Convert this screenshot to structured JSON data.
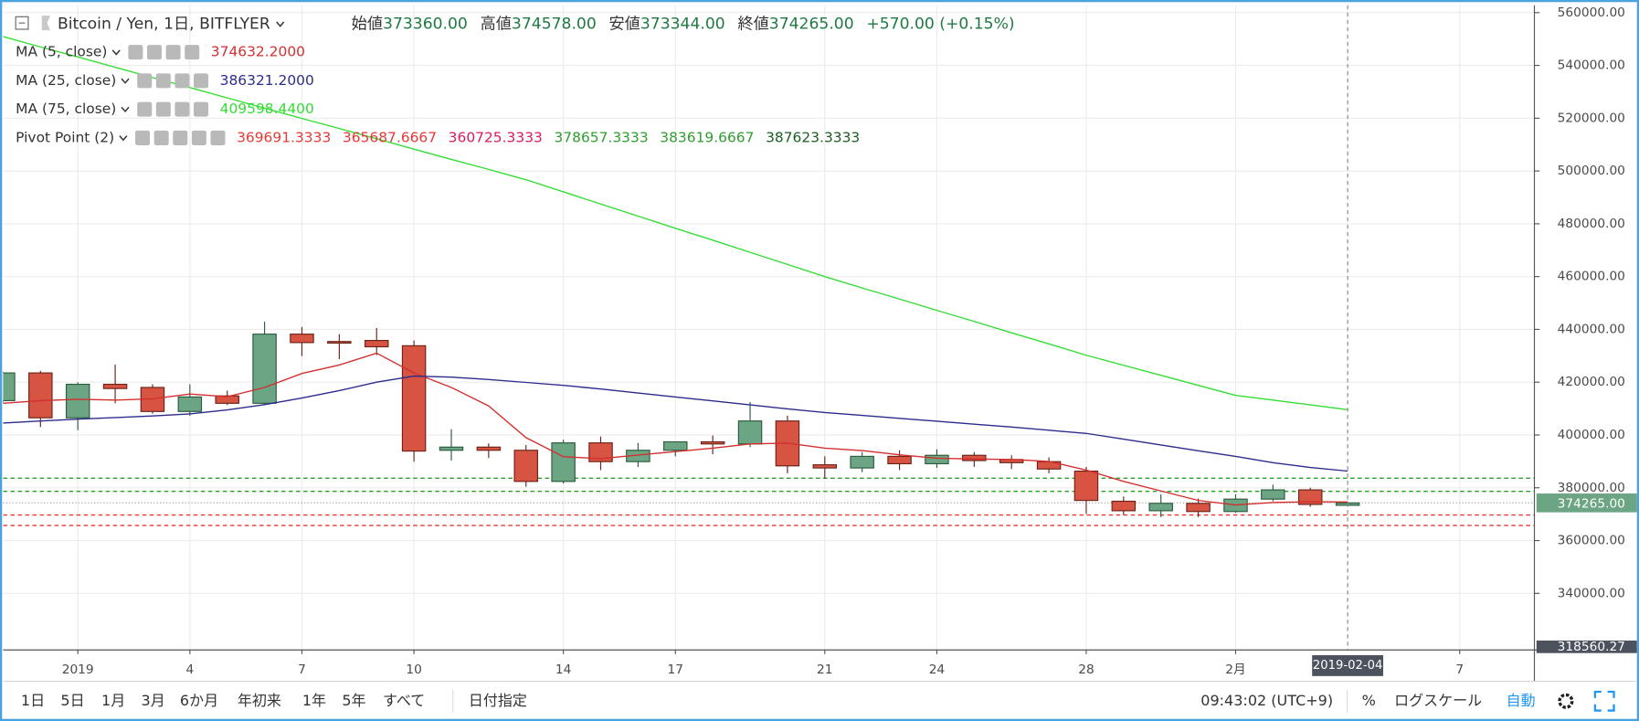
{
  "header": {
    "symbol": "Bitcoin / Yen, 1日, BITFLYER",
    "fields": [
      {
        "label": "始値",
        "value": "373360.00"
      },
      {
        "label": "高値",
        "value": "374578.00"
      },
      {
        "label": "安値",
        "value": "373344.00"
      },
      {
        "label": "終値",
        "value": "374265.00"
      }
    ],
    "change": "+570.00 (+0.15%)"
  },
  "chart_data": {
    "type": "candlestick",
    "x": [
      "2018-12-30",
      "2018-12-31",
      "2019-01-01",
      "2019-01-02",
      "2019-01-03",
      "2019-01-04",
      "2019-01-05",
      "2019-01-06",
      "2019-01-07",
      "2019-01-08",
      "2019-01-09",
      "2019-01-10",
      "2019-01-11",
      "2019-01-12",
      "2019-01-13",
      "2019-01-14",
      "2019-01-15",
      "2019-01-16",
      "2019-01-17",
      "2019-01-18",
      "2019-01-19",
      "2019-01-20",
      "2019-01-21",
      "2019-01-22",
      "2019-01-23",
      "2019-01-24",
      "2019-01-25",
      "2019-01-26",
      "2019-01-27",
      "2019-01-28",
      "2019-01-29",
      "2019-01-30",
      "2019-01-31",
      "2019-02-01",
      "2019-02-02",
      "2019-02-03",
      "2019-02-04"
    ],
    "open": [
      413000,
      423500,
      406500,
      419200,
      418000,
      408900,
      414800,
      412000,
      438200,
      435400,
      435800,
      433800,
      394200,
      395400,
      394200,
      382400,
      397000,
      389900,
      394200,
      397400,
      396600,
      405300,
      388700,
      387500,
      391900,
      389100,
      392300,
      390700,
      389900,
      386300,
      374900,
      371300,
      374100,
      371000,
      375700,
      379200,
      373360
    ],
    "high": [
      424000,
      424300,
      420000,
      426700,
      419200,
      419200,
      416800,
      442900,
      440900,
      438200,
      440500,
      435800,
      402200,
      396800,
      396200,
      398200,
      399400,
      397000,
      397400,
      399800,
      412500,
      407300,
      391900,
      393500,
      394200,
      394600,
      393500,
      392300,
      391500,
      387900,
      376700,
      377500,
      375900,
      377500,
      381200,
      380000,
      374578
    ],
    "low": [
      412000,
      403000,
      401800,
      412000,
      408100,
      407300,
      411300,
      411300,
      429900,
      428700,
      430300,
      389900,
      390300,
      391300,
      380400,
      381600,
      386700,
      387900,
      391900,
      392700,
      395400,
      385500,
      383500,
      385900,
      386700,
      387500,
      387900,
      387100,
      385500,
      370100,
      369700,
      368900,
      368900,
      370500,
      374900,
      372800,
      373344
    ],
    "close": [
      423500,
      406500,
      419200,
      417600,
      408900,
      414400,
      412000,
      438200,
      435000,
      435000,
      433400,
      393900,
      395400,
      394200,
      382400,
      397000,
      389900,
      394200,
      397400,
      396600,
      405300,
      388300,
      387500,
      391900,
      389100,
      392300,
      390300,
      389500,
      387100,
      375200,
      371300,
      374100,
      371000,
      375700,
      379200,
      373695,
      374265
    ],
    "up_color": "#6ba583",
    "down_color": "#d75442",
    "series": [
      {
        "name": "MA (5, close)",
        "color": "#d32f2f",
        "legend_value": "374632.2000",
        "values": [
          412000,
          413000,
          413500,
          413200,
          413700,
          415500,
          414500,
          418000,
          423300,
          426500,
          431000,
          423500,
          418000,
          411000,
          399000,
          391800,
          391000,
          392400,
          393700,
          395000,
          396600,
          396900,
          395000,
          394100,
          392500,
          391200,
          390900,
          390700,
          390000,
          386700,
          382400,
          378800,
          375200,
          373500,
          374400,
          374700,
          374632.2
        ]
      },
      {
        "name": "MA (25, close)",
        "color": "#2c2c8c",
        "legend_value": "386321.2000",
        "values": [
          404500,
          405300,
          406000,
          406600,
          407200,
          408000,
          409500,
          411500,
          414000,
          416800,
          420000,
          422300,
          421900,
          421000,
          419900,
          418800,
          417400,
          415900,
          414400,
          412900,
          411400,
          409900,
          408500,
          407400,
          406300,
          405200,
          404100,
          403000,
          401800,
          400600,
          398400,
          396200,
          394000,
          391900,
          389500,
          387700,
          386321.2
        ]
      },
      {
        "name": "MA (75, close)",
        "color": "#33dd33",
        "legend_value": "409598.4400",
        "values": [
          550900,
          547000,
          543200,
          539300,
          535400,
          531600,
          527700,
          523800,
          519900,
          516100,
          512200,
          508300,
          504400,
          500600,
          496700,
          492100,
          487500,
          482900,
          478300,
          473800,
          469200,
          464600,
          460000,
          455700,
          451500,
          447200,
          443000,
          438700,
          434500,
          430200,
          426400,
          422600,
          418800,
          415000,
          413200,
          411400,
          409598.44
        ]
      }
    ],
    "pivot": {
      "name": "Pivot Point (2)",
      "levels": [
        {
          "value": 369691.3333,
          "color": "#e53935",
          "line": true
        },
        {
          "value": 365687.6667,
          "color": "#e53935",
          "line": true
        },
        {
          "value": 360725.3333,
          "color": "#d81b60",
          "line": false
        },
        {
          "value": 378657.3333,
          "color": "#2e9e2e",
          "line": true
        },
        {
          "value": 383619.6667,
          "color": "#2e9e2e",
          "line": true
        },
        {
          "value": 387623.3333,
          "color": "#1b5e20",
          "line": false
        }
      ]
    },
    "xlim": [
      "2018-12-30",
      "2019-02-09"
    ],
    "xticks": [
      {
        "value": "2019-01-01",
        "label": "2019"
      },
      {
        "value": "2019-01-04",
        "label": "4"
      },
      {
        "value": "2019-01-07",
        "label": "7"
      },
      {
        "value": "2019-01-10",
        "label": "10"
      },
      {
        "value": "2019-01-14",
        "label": "14"
      },
      {
        "value": "2019-01-17",
        "label": "17"
      },
      {
        "value": "2019-01-21",
        "label": "21"
      },
      {
        "value": "2019-01-24",
        "label": "24"
      },
      {
        "value": "2019-01-28",
        "label": "28"
      },
      {
        "value": "2019-02-01",
        "label": "2月"
      },
      {
        "value": "2019-02-07",
        "label": "7"
      }
    ],
    "ylim": [
      318560.27,
      562800
    ],
    "yticks": [
      {
        "value": 340000,
        "label": "340000.00"
      },
      {
        "value": 360000,
        "label": "360000.00"
      },
      {
        "value": 380000,
        "label": "380000.00"
      },
      {
        "value": 400000,
        "label": "400000.00"
      },
      {
        "value": 420000,
        "label": "420000.00"
      },
      {
        "value": 440000,
        "label": "440000.00"
      },
      {
        "value": 460000,
        "label": "460000.00"
      },
      {
        "value": 480000,
        "label": "480000.00"
      },
      {
        "value": 500000,
        "label": "500000.00"
      },
      {
        "value": 520000,
        "label": "520000.00"
      },
      {
        "value": 540000,
        "label": "540000.00"
      },
      {
        "value": 560000,
        "label": "560000.00"
      }
    ],
    "grid": true,
    "last_price": {
      "value": 374265,
      "label": "374265.00"
    },
    "y_bottom": {
      "value": 318560.27,
      "label": "318560.27"
    },
    "crosshair": "2019-02-04"
  },
  "toolbar": {
    "ranges": [
      "1日",
      "5日",
      "1月",
      "3月",
      "6か月",
      "年初来",
      "1年",
      "5年",
      "すべて"
    ],
    "date_button": "日付指定",
    "clock": "09:43:02 (UTC+9)",
    "percent": "%",
    "log_scale": "ログスケール",
    "auto": "自動"
  }
}
